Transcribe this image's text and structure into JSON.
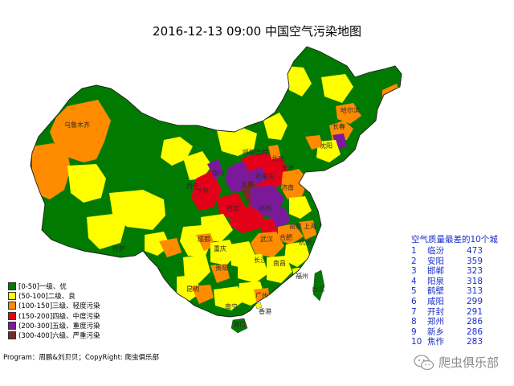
{
  "title": "2016-12-13 09:00 中国空气污染地图",
  "legend": [
    {
      "label": "[0-50]一级、优",
      "color": "#007a00"
    },
    {
      "label": "(50-100]二级、良",
      "color": "#ffff00"
    },
    {
      "label": "(100-150]三级、轻度污染",
      "color": "#ff8c00"
    },
    {
      "label": "(150-200]四级、中度污染",
      "color": "#e5001a"
    },
    {
      "label": "(200-300]五级、重度污染",
      "color": "#7a1a9a"
    },
    {
      "label": "(300-400]六级、严重污染",
      "color": "#7a2a2a"
    }
  ],
  "credit": "Program：周鹏&刘贝贝；CopyRight: 爬虫俱乐部",
  "ranking": {
    "title": "空气质量最差的10个城",
    "items": [
      {
        "rank": "1",
        "city": "临汾",
        "value": "473"
      },
      {
        "rank": "2",
        "city": "安阳",
        "value": "359"
      },
      {
        "rank": "3",
        "city": "邯郸",
        "value": "323"
      },
      {
        "rank": "4",
        "city": "阳泉",
        "value": "318"
      },
      {
        "rank": "5",
        "city": "鹤壁",
        "value": "313"
      },
      {
        "rank": "6",
        "city": "咸阳",
        "value": "299"
      },
      {
        "rank": "7",
        "city": "开封",
        "value": "291"
      },
      {
        "rank": "8",
        "city": "郑州",
        "value": "286"
      },
      {
        "rank": "9",
        "city": "新乡",
        "value": "286"
      },
      {
        "rank": "10",
        "city": "焦作",
        "value": "283"
      }
    ]
  },
  "map_labels": [
    {
      "name": "乌鲁木齐"
    },
    {
      "name": "哈尔滨"
    },
    {
      "name": "长春"
    },
    {
      "name": "沈阳"
    },
    {
      "name": "呼和浩特"
    },
    {
      "name": "北京"
    },
    {
      "name": "天津"
    },
    {
      "name": "银川"
    },
    {
      "name": "石家庄"
    },
    {
      "name": "太原"
    },
    {
      "name": "济南"
    },
    {
      "name": "兰州"
    },
    {
      "name": "西宁"
    },
    {
      "name": "西安"
    },
    {
      "name": "郑州"
    },
    {
      "name": "南京"
    },
    {
      "name": "合肥"
    },
    {
      "name": "上海"
    },
    {
      "name": "拉萨"
    },
    {
      "name": "成都"
    },
    {
      "name": "重庆"
    },
    {
      "name": "武汉"
    },
    {
      "name": "杭州"
    },
    {
      "name": "长沙"
    },
    {
      "name": "南昌"
    },
    {
      "name": "福州"
    },
    {
      "name": "贵阳"
    },
    {
      "name": "昆明"
    },
    {
      "name": "南宁"
    },
    {
      "name": "广州"
    },
    {
      "name": "台北"
    },
    {
      "name": "香港"
    },
    {
      "name": "海口"
    }
  ],
  "watermark": "爬虫俱乐部"
}
